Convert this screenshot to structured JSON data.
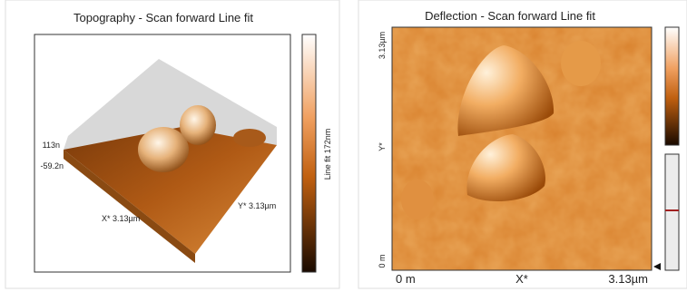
{
  "left_panel": {
    "title": "Topography - Scan forward   Line fit",
    "z_max": "113n",
    "z_min": "-59.2n",
    "x_axis": "X* 3.13µm",
    "y_axis": "Y* 3.13µm",
    "colorbar_label": "Line fit 172nm"
  },
  "right_panel": {
    "title": "Deflection - Scan forward   Line fit",
    "y_max": "3.13µm",
    "y_label": "Y*",
    "y_min": "0 m",
    "x_min": "0 m",
    "x_label": "X*",
    "x_max": "3.13µm"
  }
}
